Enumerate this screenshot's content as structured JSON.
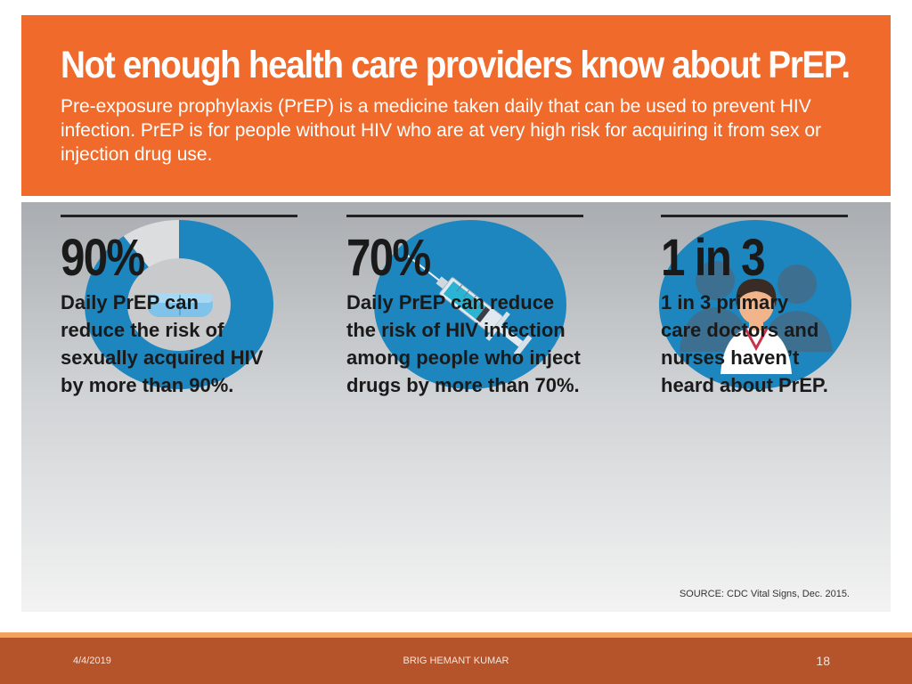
{
  "header": {
    "title": "Not enough health care providers know about PrEP.",
    "subtitle": "Pre-exposure prophylaxis (PrEP) is a medicine taken daily that can be used to prevent HIV infection. PrEP is for people without HIV who are at very high risk for acquiring it from sex or injection drug use."
  },
  "stats": [
    {
      "number": "90%",
      "text": "Daily PrEP can\nreduce the risk of\nsexually acquired HIV\nby more than 90%.",
      "icon": "pill-donut-icon",
      "fraction": 0.9
    },
    {
      "number": "70%",
      "text": "Daily PrEP can reduce\nthe risk of HIV infection\namong people who inject\ndrugs by more than 70%.",
      "icon": "syringe-icon"
    },
    {
      "number": "1 in 3",
      "text": "1 in 3 primary\ncare doctors and\nnurses haven’t\nheard about PrEP.",
      "icon": "doctors-icon"
    }
  ],
  "source": "SOURCE: CDC Vital Signs, Dec. 2015.",
  "footer": {
    "date": "4/4/2019",
    "author": "BRIG HEMANT KUMAR",
    "page": "18"
  },
  "colors": {
    "header_orange": "#ef6a2b",
    "icon_blue": "#1d86bf",
    "footer_brown": "#b5532a"
  }
}
